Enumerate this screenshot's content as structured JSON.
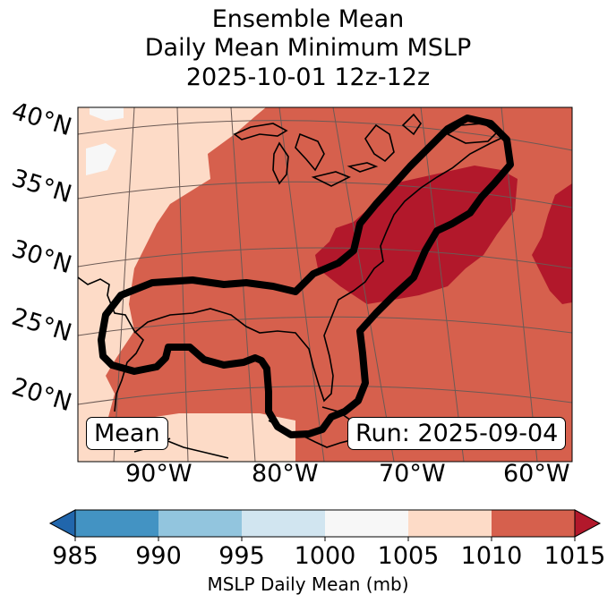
{
  "title": {
    "line1": "Ensemble Mean",
    "line2": "Daily Mean Minimum MSLP",
    "line3": "2025-10-01 12z-12z"
  },
  "map": {
    "lat_labels": [
      "40°N",
      "35°N",
      "30°N",
      "25°N",
      "20°N"
    ],
    "lon_labels": [
      "90°W",
      "80°W",
      "70°W",
      "60°W"
    ],
    "mean_box": "Mean",
    "run_box": "Run: 2025-09-04",
    "colors": {
      "c1000": "#f7f7f7",
      "c1005": "#fddbc7",
      "c1010": "#d6604d",
      "c1015": "#b2182b",
      "contour": "#000000",
      "coast": "#000000",
      "grid": "#6b5a55"
    }
  },
  "colorbar": {
    "ticks": [
      "985",
      "990",
      "995",
      "1000",
      "1005",
      "1010",
      "1015"
    ],
    "colors": [
      "#2166ac",
      "#4393c3",
      "#92c5de",
      "#d1e5f0",
      "#f7f7f7",
      "#fddbc7",
      "#d6604d",
      "#b2182b"
    ],
    "label": "MSLP Daily Mean (mb)"
  }
}
